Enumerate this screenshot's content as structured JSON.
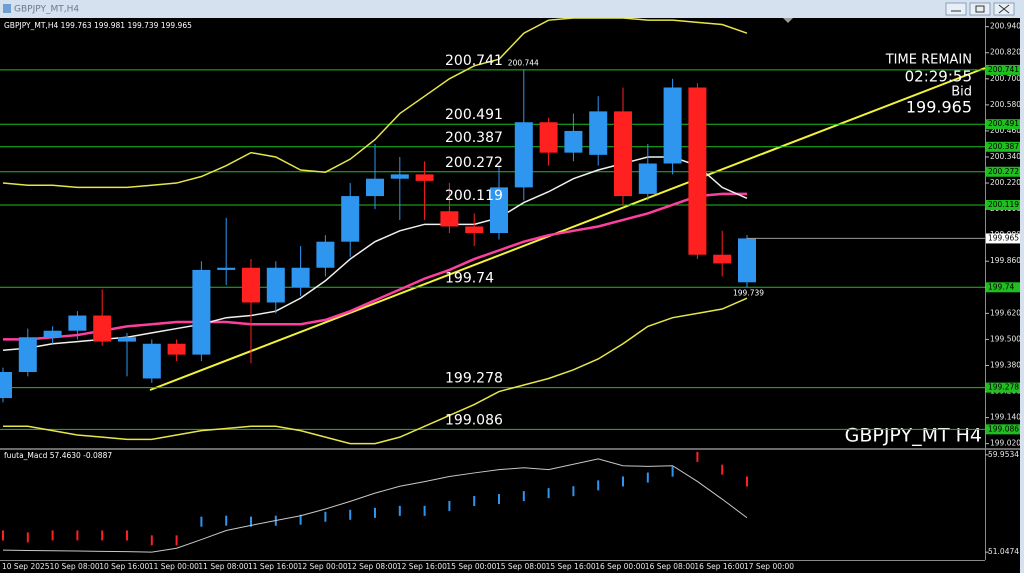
{
  "ui": {
    "watermark": "GBPJPY_MT H4",
    "time_remain_label": "TIME REMAIN",
    "time_remain": "02:29:55",
    "bid_label": "Bid"
  },
  "chart_data": [
    {
      "type": "candlestick",
      "title": "GBPJPY_MT,H4",
      "categories": [
        "10 Sep 2025",
        null,
        "10 Sep 08:00",
        null,
        "10 Sep 16:00",
        null,
        "11 Sep 00:00",
        null,
        "11 Sep 08:00",
        null,
        "11 Sep 16:00",
        null,
        "12 Sep 00:00",
        null,
        "12 Sep 08:00",
        null,
        "12 Sep 16:00",
        null,
        "15 Sep 00:00",
        null,
        "15 Sep 08:00",
        null,
        "15 Sep 16:00",
        null,
        "16 Sep 00:00",
        null,
        "16 Sep 08:00",
        null,
        "16 Sep 16:00",
        null,
        "17 Sep 00:00"
      ],
      "open": [
        199.23,
        199.35,
        199.51,
        199.54,
        199.61,
        199.49,
        199.32,
        199.48,
        199.43,
        199.82,
        199.83,
        199.67,
        199.74,
        199.83,
        199.95,
        200.16,
        200.24,
        200.26,
        200.09,
        200.02,
        199.99,
        200.2,
        200.5,
        200.36,
        200.35,
        200.55,
        200.17,
        200.31,
        200.66,
        199.89,
        199.763
      ],
      "high": [
        199.37,
        199.55,
        199.56,
        199.63,
        199.73,
        199.53,
        199.5,
        199.5,
        199.86,
        200.06,
        199.87,
        199.86,
        199.93,
        199.98,
        200.22,
        200.4,
        200.34,
        200.32,
        200.22,
        200.08,
        200.3,
        200.744,
        200.52,
        200.54,
        200.62,
        200.66,
        200.4,
        200.7,
        200.68,
        200.0,
        199.981
      ],
      "low": [
        199.21,
        199.33,
        199.48,
        199.5,
        199.47,
        199.33,
        199.3,
        199.4,
        199.4,
        199.75,
        199.39,
        199.62,
        199.7,
        199.79,
        199.88,
        200.1,
        200.05,
        200.05,
        199.99,
        199.93,
        199.96,
        200.14,
        200.3,
        200.32,
        200.3,
        200.12,
        200.14,
        200.26,
        199.87,
        199.79,
        199.739
      ],
      "close": [
        199.35,
        199.51,
        199.54,
        199.61,
        199.49,
        199.51,
        199.48,
        199.43,
        199.82,
        199.83,
        199.67,
        199.83,
        199.83,
        199.95,
        200.16,
        200.24,
        200.26,
        200.23,
        200.02,
        199.99,
        200.2,
        200.5,
        200.36,
        200.46,
        200.55,
        200.16,
        200.31,
        200.66,
        199.89,
        199.85,
        199.965
      ],
      "up_color": "#2f96f0",
      "down_color": "#ff2020",
      "ylim": [
        199.0,
        200.98
      ],
      "yticks": [
        {
          "value": 200.94,
          "label": "200.940"
        },
        {
          "value": 200.82,
          "label": "200.820"
        },
        {
          "value": 200.7,
          "label": "200.700"
        },
        {
          "value": 200.58,
          "label": "200.580"
        },
        {
          "value": 200.46,
          "label": "200.460"
        },
        {
          "value": 200.34,
          "label": "200.340"
        },
        {
          "value": 200.22,
          "label": "200.220"
        },
        {
          "value": 200.1,
          "label": "200.100"
        },
        {
          "value": 199.98,
          "label": "199.980"
        },
        {
          "value": 199.86,
          "label": "199.860"
        },
        {
          "value": 199.74,
          "label": "199.740"
        },
        {
          "value": 199.62,
          "label": "199.620"
        },
        {
          "value": 199.5,
          "label": "199.500"
        },
        {
          "value": 199.38,
          "label": "199.380"
        },
        {
          "value": 199.26,
          "label": "199.260"
        },
        {
          "value": 199.14,
          "label": "199.140"
        },
        {
          "value": 199.02,
          "label": "199.020"
        }
      ],
      "grid": false,
      "levels": [
        200.741,
        200.491,
        200.387,
        200.272,
        200.119,
        199.74,
        199.278,
        199.086
      ],
      "level_color": "#1fbf1f",
      "overlays": [
        {
          "color": "#e6e64a",
          "values": [
            200.22,
            200.21,
            200.21,
            200.2,
            200.2,
            200.2,
            200.21,
            200.22,
            200.25,
            200.3,
            200.36,
            200.34,
            200.28,
            200.27,
            200.33,
            200.42,
            200.54,
            200.62,
            200.7,
            200.76,
            200.79,
            200.91,
            200.97,
            200.98,
            200.98,
            200.98,
            200.97,
            200.97,
            200.96,
            200.95,
            200.91
          ]
        },
        {
          "color": "#e6e64a",
          "values": [
            199.1,
            199.1,
            199.08,
            199.06,
            199.05,
            199.04,
            199.04,
            199.06,
            199.08,
            199.09,
            199.1,
            199.1,
            199.08,
            199.05,
            199.02,
            199.02,
            199.05,
            199.1,
            199.15,
            199.2,
            199.26,
            199.29,
            199.32,
            199.36,
            199.41,
            199.48,
            199.56,
            199.6,
            199.62,
            199.64,
            199.69
          ]
        },
        {
          "color": "#ff3fa0",
          "values": [
            199.5,
            199.5,
            199.51,
            199.52,
            199.54,
            199.56,
            199.57,
            199.58,
            199.58,
            199.58,
            199.57,
            199.57,
            199.57,
            199.59,
            199.63,
            199.68,
            199.73,
            199.78,
            199.82,
            199.87,
            199.91,
            199.95,
            199.98,
            200.0,
            200.02,
            200.05,
            200.08,
            200.12,
            200.16,
            200.17,
            200.17
          ]
        },
        {
          "color": "#f0f0f0",
          "values": [
            199.45,
            199.46,
            199.48,
            199.49,
            199.5,
            199.51,
            199.53,
            199.55,
            199.57,
            199.6,
            199.61,
            199.63,
            199.69,
            199.77,
            199.87,
            199.95,
            200.0,
            200.03,
            200.03,
            200.03,
            200.06,
            200.13,
            200.18,
            200.24,
            200.28,
            200.31,
            200.34,
            200.34,
            200.3,
            200.2,
            200.15
          ]
        }
      ]
    },
    {
      "type": "line",
      "title": "fuuta_Macd 57.4630 -0.0887",
      "values": [
        51.23,
        51.2,
        51.18,
        51.15,
        51.12,
        51.1,
        51.05,
        51.41,
        52.2,
        53.03,
        53.5,
        53.95,
        54.38,
        55.0,
        55.7,
        56.45,
        57.08,
        57.5,
        57.97,
        58.3,
        58.6,
        58.78,
        58.6,
        59.1,
        59.59,
        58.96,
        58.9,
        58.96,
        57.52,
        55.9,
        54.2
      ],
      "color": "#c8c8c8",
      "histogram": {
        "values": [
          52.58,
          52.4,
          52.58,
          52.58,
          52.58,
          52.58,
          52.13,
          52.13,
          53.84,
          53.93,
          53.84,
          53.93,
          54.02,
          54.29,
          54.47,
          54.65,
          54.83,
          54.83,
          55.28,
          55.73,
          55.91,
          56.18,
          56.45,
          56.63,
          57.16,
          57.52,
          57.88,
          58.42,
          59.77,
          58.6,
          57.52
        ],
        "colors": [
          "#ff2020",
          "#ff2020",
          "#ff2020",
          "#ff2020",
          "#ff2020",
          "#ff2020",
          "#ff2020",
          "#ff2020",
          "#2f96f0",
          "#2f96f0",
          "#2f96f0",
          "#2f96f0",
          "#2f96f0",
          "#2f96f0",
          "#2f96f0",
          "#2f96f0",
          "#2f96f0",
          "#2f96f0",
          "#2f96f0",
          "#2f96f0",
          "#2f96f0",
          "#2f96f0",
          "#2f96f0",
          "#2f96f0",
          "#2f96f0",
          "#2f96f0",
          "#2f96f0",
          "#2f96f0",
          "#ff2020",
          "#ff2020",
          "#ff2020"
        ]
      },
      "ylim": [
        50.33,
        60.4
      ],
      "yticks": [
        59.9534,
        51.0474
      ]
    }
  ]
}
